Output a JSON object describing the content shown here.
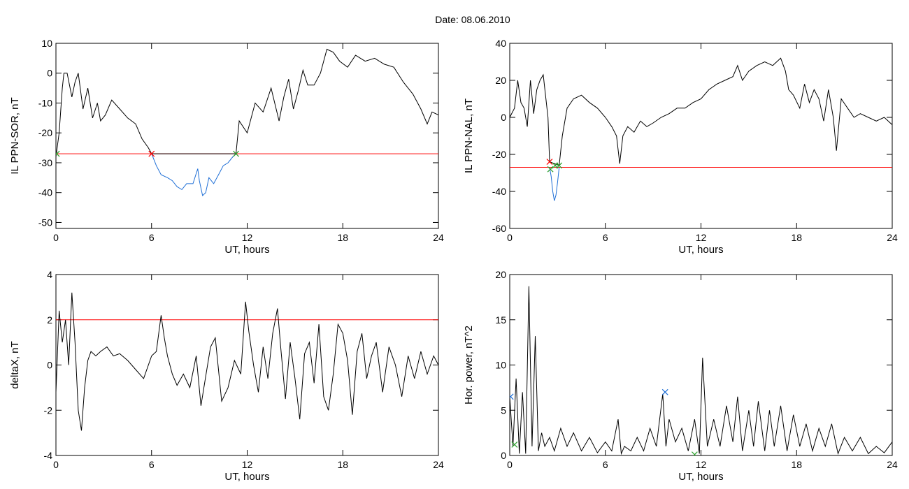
{
  "figure": {
    "title": "Date:  08.06.2010"
  },
  "chart_data": [
    {
      "type": "line",
      "xlabel": "UT, hours",
      "ylabel": "IL PPN-SOR, nT",
      "xlim": [
        0,
        24
      ],
      "ylim": [
        -52,
        10
      ],
      "xticks": [
        0,
        6,
        12,
        18,
        24
      ],
      "yticks": [
        10,
        0,
        -10,
        -20,
        -30,
        -40,
        -50
      ],
      "threshold": -27,
      "threshold_color": "#ff0000",
      "series": [
        {
          "color": "#000000",
          "x": [
            0,
            0.2,
            0.4,
            0.5,
            0.7,
            1.0,
            1.2,
            1.4,
            1.7,
            2.0,
            2.3,
            2.6,
            2.8,
            3.1,
            3.5,
            4.0,
            4.5,
            5.0,
            5.4,
            5.8,
            6.0,
            6.0,
            11.3,
            11.3,
            11.5,
            12.0,
            12.5,
            13.0,
            13.5,
            14.0,
            14.3,
            14.6,
            14.9,
            15.2,
            15.5,
            15.8,
            16.2,
            16.6,
            17.0,
            17.4,
            17.8,
            18.3,
            18.8,
            19.4,
            20.0,
            20.6,
            21.2,
            21.8,
            22.4,
            22.9,
            23.3,
            23.6,
            24
          ],
          "y": [
            -28,
            -20,
            -5,
            0,
            0,
            -8,
            -3,
            0,
            -12,
            -5,
            -15,
            -10,
            -16,
            -14,
            -9,
            -12,
            -15,
            -17,
            -22,
            -25,
            -27,
            -27,
            -27,
            -27,
            -16,
            -20,
            -10,
            -13,
            -5,
            -16,
            -8,
            -2,
            -12,
            -6,
            1,
            -4,
            -4,
            0,
            8,
            7,
            4,
            2,
            6,
            4,
            5,
            3,
            2,
            -3,
            -7,
            -12,
            -17,
            -13,
            -14
          ]
        },
        {
          "color": "#1f6fd6",
          "x": [
            6.0,
            6.3,
            6.6,
            7.0,
            7.3,
            7.6,
            7.9,
            8.2,
            8.6,
            8.9,
            9.0,
            9.2,
            9.4,
            9.6,
            9.9,
            10.2,
            10.5,
            10.8,
            11.1,
            11.3
          ],
          "y": [
            -27,
            -31,
            -34,
            -35,
            -36,
            -38,
            -39,
            -37,
            -37,
            -32,
            -36,
            -41,
            -40,
            -35,
            -37,
            -34,
            -31,
            -30,
            -28,
            -27
          ]
        }
      ],
      "markers": [
        {
          "x": 6.0,
          "y": -27,
          "color": "#ff0000"
        },
        {
          "x": 11.3,
          "y": -27,
          "color": "#2ca02c"
        },
        {
          "x": 0.05,
          "y": -27,
          "color": "#2ca02c"
        }
      ]
    },
    {
      "type": "line",
      "xlabel": "UT, hours",
      "ylabel": "IL PPN-NAL, nT",
      "xlim": [
        0,
        24
      ],
      "ylim": [
        -60,
        40
      ],
      "xticks": [
        0,
        6,
        12,
        18,
        24
      ],
      "yticks": [
        40,
        20,
        0,
        -20,
        -40,
        -60
      ],
      "threshold": -27,
      "threshold_color": "#ff0000",
      "series": [
        {
          "color": "#000000",
          "x": [
            0,
            0.3,
            0.5,
            0.7,
            0.9,
            1.1,
            1.3,
            1.5,
            1.7,
            1.9,
            2.1,
            2.4,
            2.5,
            2.5,
            3.1,
            3.1,
            3.3,
            3.6,
            4.0,
            4.5,
            5.0,
            5.5,
            6.0,
            6.4,
            6.7,
            6.9,
            7.1,
            7.4,
            7.8,
            8.2,
            8.6,
            9.0,
            9.5,
            10.0,
            10.5,
            11.0,
            11.5,
            12.0,
            12.5,
            13.0,
            13.5,
            14.0,
            14.3,
            14.6,
            15.0,
            15.5,
            16.0,
            16.5,
            17.0,
            17.3,
            17.5,
            17.8,
            18.2,
            18.5,
            18.8,
            19.1,
            19.4,
            19.7,
            20.0,
            20.3,
            20.5,
            20.8,
            21.2,
            21.6,
            22.0,
            22.5,
            23.0,
            23.5,
            24
          ],
          "y": [
            0,
            5,
            20,
            8,
            5,
            -5,
            20,
            2,
            15,
            20,
            23,
            0,
            -24,
            -24,
            -26,
            -26,
            -10,
            5,
            10,
            12,
            8,
            5,
            0,
            -5,
            -10,
            -25,
            -10,
            -5,
            -8,
            -2,
            -5,
            -3,
            0,
            2,
            5,
            5,
            8,
            10,
            15,
            18,
            20,
            22,
            28,
            20,
            25,
            28,
            30,
            28,
            32,
            25,
            15,
            12,
            5,
            18,
            8,
            15,
            10,
            -2,
            15,
            0,
            -18,
            10,
            5,
            0,
            2,
            0,
            -2,
            0,
            -4
          ]
        },
        {
          "color": "#1f6fd6",
          "x": [
            2.5,
            2.6,
            2.7,
            2.8,
            2.9,
            3.0,
            3.1
          ],
          "y": [
            -27,
            -32,
            -40,
            -45,
            -42,
            -35,
            -27
          ]
        }
      ],
      "markers": [
        {
          "x": 2.5,
          "y": -24,
          "color": "#ff0000"
        },
        {
          "x": 2.55,
          "y": -28,
          "color": "#2ca02c"
        },
        {
          "x": 2.85,
          "y": -26,
          "color": "#2ca02c"
        },
        {
          "x": 3.1,
          "y": -26,
          "color": "#2ca02c"
        }
      ]
    },
    {
      "type": "line",
      "xlabel": "UT, hours",
      "ylabel": "deltaX, nT",
      "xlim": [
        0,
        24
      ],
      "ylim": [
        -4,
        4
      ],
      "xticks": [
        0,
        6,
        12,
        18,
        24
      ],
      "yticks": [
        4,
        2,
        0,
        -2,
        -4
      ],
      "threshold": 2,
      "threshold_color": "#ff0000",
      "series": [
        {
          "color": "#000000",
          "x": [
            0,
            0.2,
            0.4,
            0.6,
            0.8,
            1.0,
            1.2,
            1.4,
            1.6,
            1.8,
            2.0,
            2.2,
            2.5,
            2.8,
            3.2,
            3.6,
            4.0,
            4.5,
            5.0,
            5.5,
            6.0,
            6.3,
            6.6,
            6.8,
            7.0,
            7.3,
            7.6,
            8.0,
            8.4,
            8.8,
            9.1,
            9.4,
            9.7,
            10.0,
            10.4,
            10.8,
            11.2,
            11.6,
            11.9,
            12.1,
            12.4,
            12.7,
            13.0,
            13.3,
            13.6,
            13.9,
            14.1,
            14.4,
            14.7,
            15.0,
            15.3,
            15.6,
            15.9,
            16.2,
            16.5,
            16.8,
            17.1,
            17.4,
            17.7,
            18.0,
            18.3,
            18.6,
            18.9,
            19.2,
            19.5,
            19.8,
            20.1,
            20.5,
            20.9,
            21.3,
            21.7,
            22.1,
            22.5,
            22.9,
            23.3,
            23.7,
            24
          ],
          "y": [
            -1.2,
            2.4,
            1.0,
            2.0,
            0,
            3.2,
            1.0,
            -2.0,
            -2.9,
            -1.0,
            0.2,
            0.6,
            0.4,
            0.6,
            0.8,
            0.4,
            0.5,
            0.2,
            -0.2,
            -0.6,
            0.4,
            0.6,
            2.2,
            1.2,
            0.4,
            -0.4,
            -0.9,
            -0.4,
            -1.0,
            0.4,
            -1.8,
            -0.5,
            0.8,
            1.2,
            -1.6,
            -1.0,
            0.2,
            -0.4,
            2.8,
            1.5,
            0,
            -1.2,
            0.8,
            -0.6,
            1.4,
            2.5,
            0.8,
            -1.5,
            1.0,
            -0.6,
            -2.4,
            0.5,
            1.0,
            -0.8,
            1.8,
            -1.4,
            -2.0,
            -0.4,
            1.8,
            1.4,
            0.2,
            -2.2,
            0.6,
            1.4,
            -0.6,
            0.4,
            1.0,
            -1.2,
            0.8,
            0,
            -1.4,
            0.4,
            -0.6,
            0.6,
            -0.4,
            0.4,
            0
          ]
        }
      ],
      "markers": []
    },
    {
      "type": "line",
      "xlabel": "UT, hours",
      "ylabel": "Hor. power, nT^2",
      "xlim": [
        0,
        24
      ],
      "ylim": [
        0,
        20
      ],
      "xticks": [
        0,
        6,
        12,
        18,
        24
      ],
      "yticks": [
        20,
        15,
        10,
        5,
        0
      ],
      "threshold": null,
      "series": [
        {
          "color": "#000000",
          "x": [
            0,
            0.2,
            0.4,
            0.6,
            0.8,
            1.0,
            1.2,
            1.4,
            1.6,
            1.8,
            2.0,
            2.2,
            2.5,
            2.8,
            3.2,
            3.6,
            4.0,
            4.5,
            5.0,
            5.5,
            6.0,
            6.4,
            6.8,
            7.0,
            7.2,
            7.6,
            8.0,
            8.4,
            8.8,
            9.2,
            9.6,
            9.8,
            10.0,
            10.4,
            10.8,
            11.2,
            11.6,
            11.9,
            12.1,
            12.4,
            12.8,
            13.2,
            13.6,
            14.0,
            14.3,
            14.6,
            15.0,
            15.3,
            15.6,
            16.0,
            16.3,
            16.6,
            17.0,
            17.4,
            17.8,
            18.2,
            18.6,
            19.0,
            19.4,
            19.8,
            20.2,
            20.6,
            21.0,
            21.5,
            22.0,
            22.5,
            23.0,
            23.5,
            24
          ],
          "y": [
            6.5,
            1.0,
            8.5,
            0.2,
            7.0,
            0.2,
            18.7,
            1.0,
            13.2,
            0.5,
            2.5,
            1.0,
            2.0,
            0.5,
            3.0,
            1.0,
            2.5,
            0.5,
            2.0,
            0.3,
            1.5,
            0.5,
            4.0,
            0.2,
            1.0,
            0.5,
            2.0,
            0.5,
            3.0,
            1.0,
            6.8,
            1.0,
            4.0,
            1.5,
            3.0,
            0.5,
            4.0,
            0.2,
            10.8,
            1.0,
            4.0,
            1.0,
            5.5,
            1.5,
            6.5,
            0.5,
            5.0,
            1.0,
            6.0,
            0.5,
            5.0,
            1.0,
            5.5,
            0.5,
            4.5,
            1.0,
            3.5,
            0.5,
            3.0,
            1.0,
            3.5,
            0.2,
            2.0,
            0.5,
            2.0,
            0.2,
            1.0,
            0.3,
            1.5
          ]
        }
      ],
      "markers": [
        {
          "x": 9.75,
          "y": 7.0,
          "color": "#1f6fd6"
        },
        {
          "x": 0.05,
          "y": 6.5,
          "color": "#1f6fd6"
        },
        {
          "x": 0.3,
          "y": 1.2,
          "color": "#2ca02c"
        },
        {
          "x": 11.6,
          "y": 0.1,
          "color": "#2ca02c"
        }
      ]
    }
  ]
}
